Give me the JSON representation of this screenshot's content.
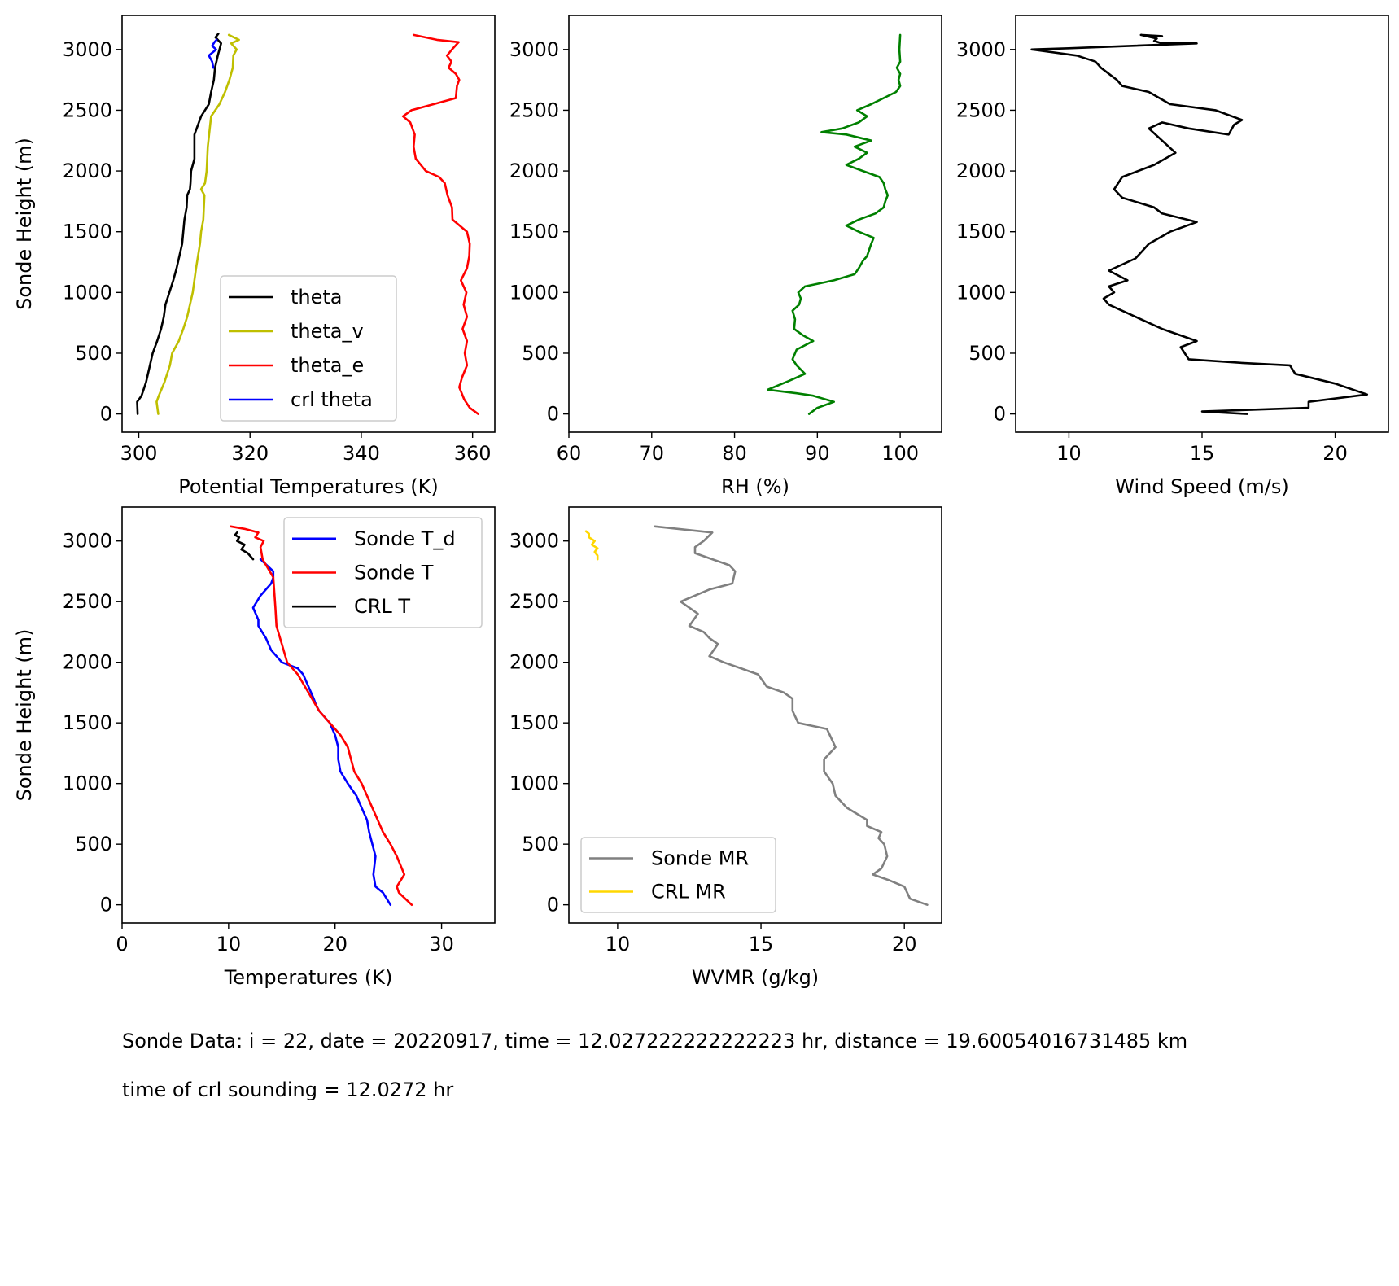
{
  "chart_data": [
    {
      "type": "line",
      "xlabel": "Potential Temperatures (K)",
      "ylabel": "Sonde Height (m)",
      "xlim": [
        297,
        364
      ],
      "ylim": [
        -150,
        3280
      ],
      "xticks": [
        300,
        320,
        340,
        360
      ],
      "yticks": [
        0,
        500,
        1000,
        1500,
        2000,
        2500,
        3000
      ],
      "legend": "lower-right",
      "series": [
        {
          "name": "theta",
          "color": "#000000",
          "x": [
            299.8,
            299.7,
            300.5,
            301.3,
            302,
            302.5,
            303.3,
            304,
            304.5,
            304.8,
            305.5,
            306.2,
            306.8,
            307.3,
            307.8,
            308,
            308.2,
            308.6,
            308.7,
            309.2,
            309.3,
            309.4,
            310,
            310,
            311.2,
            312.6,
            313,
            313.5,
            313.7,
            314.2,
            314.8,
            313.8,
            314.3
          ],
          "y": [
            0,
            100,
            150,
            260,
            400,
            500,
            600,
            700,
            800,
            900,
            1000,
            1100,
            1200,
            1300,
            1400,
            1500,
            1600,
            1700,
            1800,
            1850,
            1900,
            2000,
            2100,
            2300,
            2450,
            2550,
            2650,
            2750,
            2850,
            2950,
            3050,
            3100,
            3130
          ]
        },
        {
          "name": "theta_v",
          "color": "#bfbf00",
          "x": [
            303.5,
            303.2,
            303.6,
            304.6,
            305.6,
            306,
            307.2,
            308,
            308.7,
            309.2,
            309.7,
            310.3,
            311,
            311.2,
            311.6,
            311.8,
            311.2,
            311.9,
            312.2,
            312.4,
            313,
            314.5,
            315.5,
            316.3,
            316.9,
            317,
            317.6,
            316.6,
            318,
            316.2
          ],
          "y": [
            0,
            100,
            150,
            260,
            400,
            500,
            600,
            700,
            800,
            900,
            1000,
            1200,
            1400,
            1500,
            1600,
            1800,
            1850,
            1900,
            2000,
            2200,
            2450,
            2550,
            2650,
            2750,
            2850,
            2950,
            3000,
            3050,
            3080,
            3120
          ]
        },
        {
          "name": "theta_e",
          "color": "#ff0000",
          "x": [
            361,
            359.5,
            358.5,
            357.6,
            358.1,
            359,
            358.6,
            359,
            358.2,
            359,
            358.4,
            358.9,
            357.9,
            359,
            359.4,
            359.5,
            359,
            356.4,
            356.3,
            355.5,
            355,
            354,
            351.6,
            349.8,
            349.4,
            349.6,
            348.8,
            347.5,
            349,
            353,
            357,
            357.2,
            357.6,
            357,
            355.7,
            356.2,
            355.4,
            356.3,
            357.5,
            353.6,
            349.4
          ],
          "y": [
            0,
            50,
            120,
            220,
            300,
            400,
            500,
            600,
            700,
            800,
            900,
            1000,
            1100,
            1200,
            1300,
            1400,
            1500,
            1600,
            1700,
            1800,
            1900,
            1950,
            2000,
            2100,
            2200,
            2300,
            2400,
            2450,
            2500,
            2550,
            2600,
            2700,
            2750,
            2800,
            2850,
            2900,
            2950,
            3000,
            3060,
            3080,
            3120
          ]
        },
        {
          "name": "crl theta",
          "color": "#0000ff",
          "x": [
            313.4,
            313.2,
            312.6,
            313.4,
            313.9,
            313.2,
            313.6,
            314
          ],
          "y": [
            2850,
            2900,
            2950,
            2980,
            3000,
            3030,
            3060,
            3080
          ]
        }
      ]
    },
    {
      "type": "line",
      "xlabel": "RH (%)",
      "ylabel": "",
      "xlim": [
        60,
        105
      ],
      "ylim": [
        -150,
        3280
      ],
      "xticks": [
        60,
        70,
        80,
        90,
        100
      ],
      "yticks": [
        0,
        500,
        1000,
        1500,
        2000,
        2500,
        3000
      ],
      "series": [
        {
          "name": "",
          "color": "#008000",
          "x": [
            89,
            90,
            92,
            89.5,
            87.5,
            84,
            86.5,
            88.5,
            87.5,
            87,
            87.5,
            89.5,
            88.2,
            87.2,
            87.3,
            87,
            87.8,
            88,
            87.7,
            88.5,
            92,
            94.5,
            95,
            95.5,
            96,
            96.5,
            96.8,
            95,
            93.5,
            95,
            97,
            98,
            98.2,
            98.5,
            98.2,
            98,
            97.5,
            95.5,
            93.5,
            95,
            96,
            94.5,
            96.5,
            93.5,
            90.5,
            93,
            95,
            96,
            94.8,
            96.5,
            98,
            99.5,
            100,
            99.8,
            100,
            99.6,
            100,
            99.9,
            100
          ],
          "y": [
            0,
            50,
            100,
            150,
            170,
            200,
            270,
            330,
            400,
            450,
            530,
            600,
            650,
            700,
            780,
            850,
            900,
            950,
            1000,
            1050,
            1100,
            1150,
            1200,
            1260,
            1300,
            1400,
            1450,
            1500,
            1550,
            1600,
            1650,
            1700,
            1750,
            1800,
            1850,
            1900,
            1950,
            2000,
            2050,
            2100,
            2150,
            2200,
            2250,
            2300,
            2320,
            2350,
            2400,
            2450,
            2500,
            2550,
            2600,
            2650,
            2700,
            2750,
            2800,
            2850,
            2900,
            3000,
            3120
          ]
        }
      ]
    },
    {
      "type": "line",
      "xlabel": "Wind Speed (m/s)",
      "ylabel": "",
      "xlim": [
        8,
        22
      ],
      "ylim": [
        -150,
        3280
      ],
      "xticks": [
        10,
        15,
        20
      ],
      "yticks": [
        0,
        500,
        1000,
        1500,
        2000,
        2500,
        3000
      ],
      "series": [
        {
          "name": "",
          "color": "#000000",
          "x": [
            16.7,
            15,
            19,
            19,
            21.2,
            20,
            18.5,
            18.3,
            16.5,
            14.5,
            14.2,
            14.8,
            13.5,
            12.5,
            11.5,
            11.3,
            11.7,
            11.5,
            12.2,
            11.5,
            12.5,
            13,
            13.8,
            14.8,
            13.5,
            13.2,
            12,
            11.7,
            12,
            13.2,
            14,
            13.5,
            13,
            13.5,
            14.5,
            16,
            16.2,
            16.5,
            15.5,
            13.8,
            13,
            12,
            11.8,
            11.5,
            11.2,
            11,
            10.3,
            8.6,
            10,
            14.8,
            13.5,
            13.2,
            13.3,
            12.7,
            13.5
          ],
          "y": [
            0,
            20,
            50,
            100,
            160,
            250,
            330,
            400,
            420,
            450,
            550,
            600,
            700,
            800,
            900,
            950,
            1000,
            1050,
            1100,
            1180,
            1280,
            1400,
            1500,
            1580,
            1650,
            1700,
            1780,
            1850,
            1950,
            2050,
            2150,
            2250,
            2350,
            2400,
            2350,
            2300,
            2380,
            2420,
            2500,
            2550,
            2650,
            2700,
            2750,
            2800,
            2850,
            2900,
            2950,
            3000,
            3010,
            3050,
            3050,
            3070,
            3090,
            3120,
            3110
          ]
        }
      ]
    },
    {
      "type": "line",
      "xlabel": "Temperatures (K)",
      "ylabel": "Sonde Height (m)",
      "xlim": [
        0,
        35
      ],
      "ylim": [
        -150,
        3280
      ],
      "xticks": [
        0,
        10,
        20,
        30
      ],
      "yticks": [
        0,
        500,
        1000,
        1500,
        2000,
        2500,
        3000
      ],
      "legend": "top-right",
      "series": [
        {
          "name": "Sonde T_d",
          "color": "#0000ff",
          "x": [
            25.2,
            24.5,
            23.8,
            23.6,
            23.8,
            23.5,
            23.2,
            23,
            22.5,
            22,
            21.2,
            20.5,
            20.3,
            20.3,
            20,
            19.5,
            18.5,
            18.2,
            18,
            17.5,
            17,
            16.5,
            15,
            14.5,
            14,
            13.5,
            12.8,
            12.8,
            12.3,
            13,
            14,
            14.2,
            14.2,
            13
          ],
          "y": [
            0,
            100,
            150,
            250,
            400,
            500,
            600,
            700,
            800,
            900,
            1000,
            1100,
            1200,
            1300,
            1400,
            1500,
            1600,
            1650,
            1700,
            1800,
            1900,
            1950,
            2000,
            2050,
            2100,
            2200,
            2300,
            2350,
            2450,
            2550,
            2650,
            2700,
            2750,
            2850
          ]
        },
        {
          "name": "Sonde T",
          "color": "#ff0000",
          "x": [
            27.2,
            26,
            25.8,
            26.5,
            25.8,
            25.2,
            24.5,
            24,
            23.5,
            23,
            22.5,
            21.8,
            21.5,
            21.2,
            20.5,
            19.5,
            18.5,
            17.5,
            16.5,
            15.5,
            15,
            14.5,
            14.4,
            14.2,
            13.2,
            13,
            13.3,
            12.5,
            12.8,
            11.5,
            10.2
          ],
          "y": [
            0,
            100,
            150,
            250,
            400,
            500,
            600,
            700,
            800,
            900,
            1000,
            1100,
            1200,
            1300,
            1400,
            1500,
            1600,
            1750,
            1900,
            2000,
            2150,
            2300,
            2450,
            2700,
            2850,
            2950,
            3000,
            3030,
            3070,
            3100,
            3120
          ]
        },
        {
          "name": "CRL T",
          "color": "#000000",
          "x": [
            12.3,
            11.8,
            11.2,
            11.5,
            10.8,
            11,
            10.6,
            10.8
          ],
          "y": [
            2850,
            2900,
            2930,
            2970,
            3000,
            3030,
            3050,
            3070
          ]
        }
      ]
    },
    {
      "type": "line",
      "xlabel": "WVMR (g/kg)",
      "ylabel": "",
      "xlim": [
        8.3,
        21.3
      ],
      "ylim": [
        -150,
        3280
      ],
      "xticks": [
        10,
        15,
        20
      ],
      "yticks": [
        0,
        500,
        1000,
        1500,
        2000,
        2500,
        3000
      ],
      "legend": "lower-left",
      "series": [
        {
          "name": "Sonde MR",
          "color": "#808080",
          "x": [
            20.8,
            20.2,
            20,
            19.5,
            18.9,
            19.2,
            19.4,
            19.3,
            19.1,
            19.2,
            18.7,
            18.7,
            18,
            17.6,
            17.5,
            17.2,
            17.2,
            17.6,
            17.4,
            17.3,
            16.3,
            16.1,
            16.1,
            15.8,
            15.2,
            14.9,
            14.3,
            13.7,
            13.2,
            13.5,
            13.2,
            13,
            12.5,
            12.8,
            12.2,
            13.2,
            14,
            14.1,
            13.9,
            13.3,
            12.7,
            12.7,
            13,
            13.3,
            12.1,
            11.3
          ],
          "y": [
            0,
            50,
            150,
            200,
            250,
            300,
            400,
            500,
            550,
            600,
            650,
            700,
            800,
            900,
            1000,
            1100,
            1200,
            1300,
            1400,
            1450,
            1500,
            1600,
            1700,
            1750,
            1800,
            1900,
            1950,
            2000,
            2050,
            2150,
            2200,
            2250,
            2300,
            2400,
            2500,
            2600,
            2650,
            2750,
            2800,
            2850,
            2900,
            2950,
            3000,
            3070,
            3100,
            3120
          ]
        },
        {
          "name": "CRL MR",
          "color": "#ffd700",
          "x": [
            9.3,
            9.3,
            9.2,
            9.3,
            9.1,
            9.2,
            9,
            9,
            8.9
          ],
          "y": [
            2850,
            2880,
            2910,
            2940,
            2970,
            3000,
            3030,
            3060,
            3080
          ]
        }
      ]
    }
  ],
  "caption": {
    "line1": "Sonde Data: i = 22, date = 20220917, time = 12.027222222222223 hr, distance = 19.60054016731485 km",
    "line2": "time of crl sounding = 12.0272 hr"
  }
}
